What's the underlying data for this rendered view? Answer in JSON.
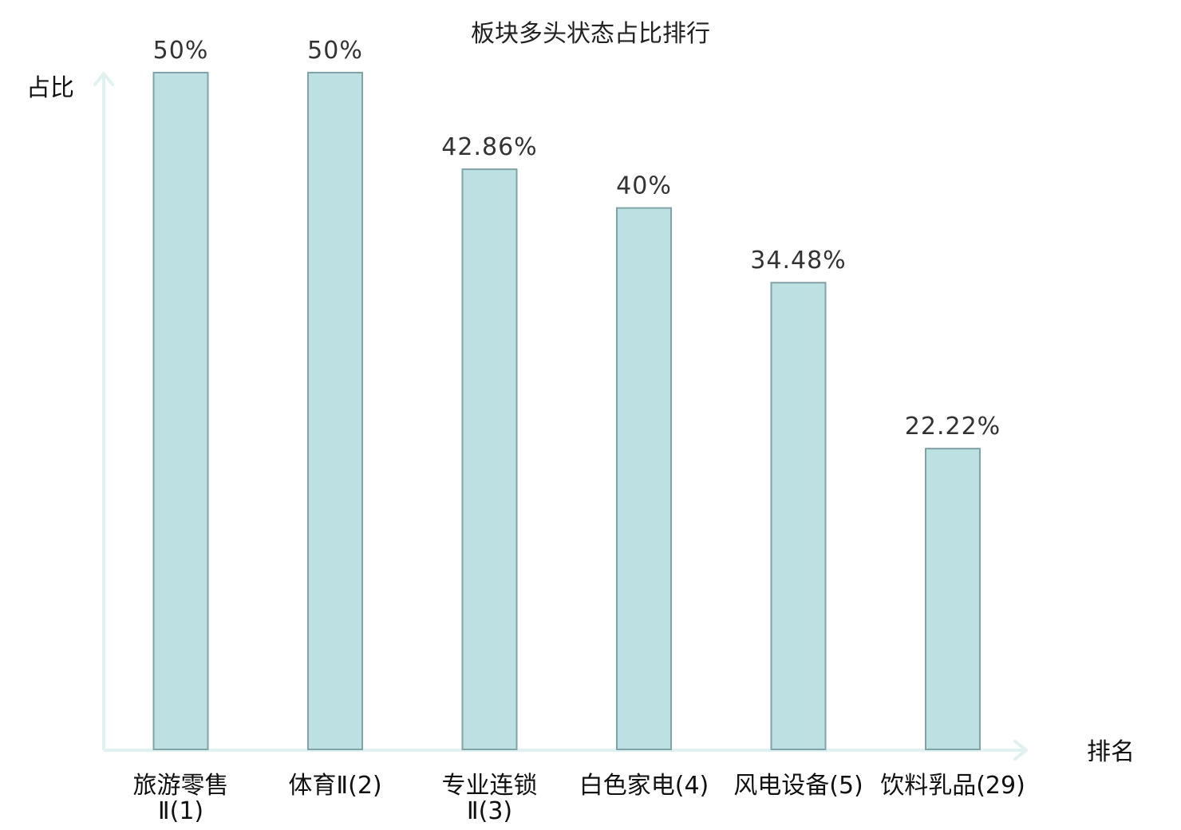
{
  "chart_data": {
    "type": "bar",
    "title": "板块多头状态占比排行",
    "ylabel": "占比",
    "xlabel": "排名",
    "categories": [
      {
        "lines": [
          "旅游零售",
          "Ⅱ(1)"
        ],
        "highlight": false
      },
      {
        "lines": [
          "体育Ⅱ(2)"
        ],
        "highlight": false
      },
      {
        "lines": [
          "专业连锁",
          "Ⅱ(3)"
        ],
        "highlight": false
      },
      {
        "lines": [
          "白色家电(4)"
        ],
        "highlight": false
      },
      {
        "lines": [
          "风电设备(5)"
        ],
        "highlight": false
      },
      {
        "lines": [
          "饮料乳品(29)"
        ],
        "highlight": true
      }
    ],
    "values": [
      50,
      50,
      42.86,
      40,
      34.48,
      22.22
    ],
    "value_labels": [
      "50%",
      "50%",
      "42.86%",
      "40%",
      "34.48%",
      "22.22%"
    ],
    "ylim": [
      0,
      50
    ],
    "grid": false,
    "legend": "none",
    "colors": {
      "bar_fill": "#bde0e3",
      "bar_stroke": "#7fa3a8",
      "axis": "#e0f2ef",
      "highlight_text": "#e02020",
      "text": "#111111"
    }
  }
}
